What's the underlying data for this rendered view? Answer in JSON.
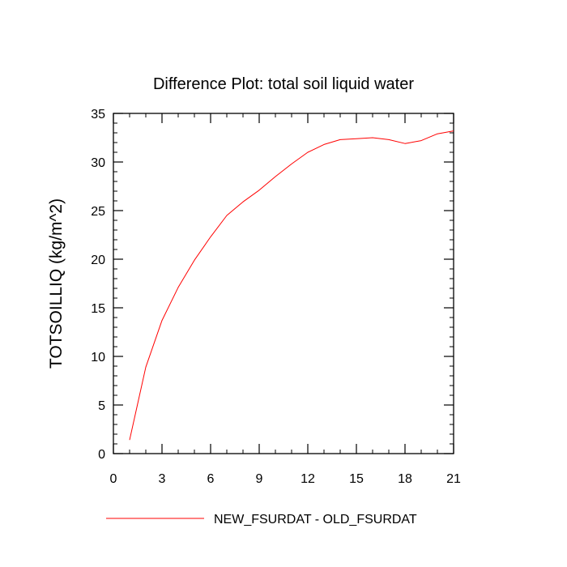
{
  "chart_data": {
    "type": "line",
    "title": "Difference Plot: total soil liquid water",
    "xlabel": "",
    "ylabel": "TOTSOILLIQ  (kg/m^2)",
    "xlim": [
      0,
      21
    ],
    "ylim": [
      0,
      35
    ],
    "xticks": [
      0,
      3,
      6,
      9,
      12,
      15,
      18,
      21
    ],
    "yticks": [
      0,
      5,
      10,
      15,
      20,
      25,
      30,
      35
    ],
    "grid": false,
    "legend_position": "bottom",
    "series": [
      {
        "name": "NEW_FSURDAT - OLD_FSURDAT",
        "color": "#ff0000",
        "x": [
          1,
          2,
          3,
          4,
          5,
          6,
          7,
          8,
          9,
          10,
          11,
          12,
          13,
          14,
          15,
          16,
          17,
          18,
          19,
          20,
          21
        ],
        "values": [
          1.4,
          8.9,
          13.7,
          17.1,
          19.9,
          22.3,
          24.5,
          25.9,
          27.1,
          28.5,
          29.8,
          31.0,
          31.8,
          32.3,
          32.4,
          32.5,
          32.3,
          31.9,
          32.2,
          32.9,
          33.2
        ]
      }
    ]
  }
}
